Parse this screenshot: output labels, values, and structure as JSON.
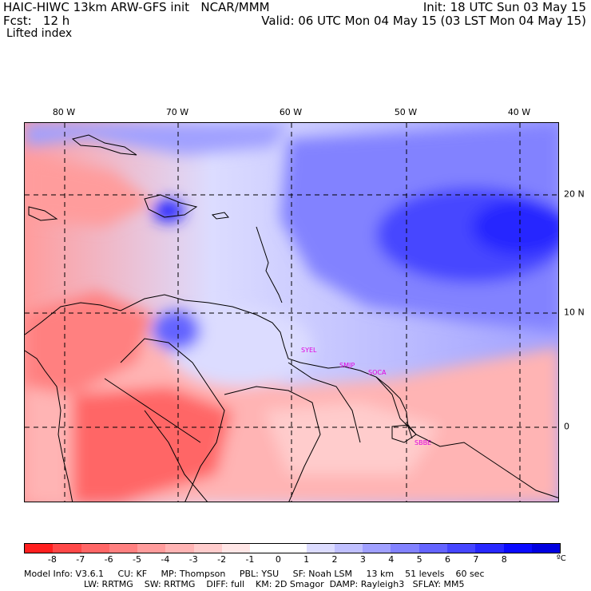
{
  "header": {
    "line1_left": "HAIC-HIWC 13km ARW-GFS init   NCAR/MMM",
    "line2_left": "Fcst:   12 h",
    "field": "Lifted index",
    "line1_right": "Init: 18 UTC Sun 03 May 15",
    "line2_right": "Valid: 06 UTC Mon 04 May 15 (03 LST Mon 04 May 15)"
  },
  "map": {
    "lon_labels": [
      "80 W",
      "70 W",
      "60 W",
      "50 W",
      "40 W"
    ],
    "lat_labels": [
      "20 N",
      "10 N",
      "0"
    ],
    "stations": [
      "SYEL",
      "SMJP",
      "SOCA",
      "SBBE"
    ]
  },
  "colorbar": {
    "colors": [
      "#ff1f1f",
      "#ff4848",
      "#ff6666",
      "#ff8080",
      "#ff9c9c",
      "#ffb4b4",
      "#ffcccc",
      "#ffe6e6",
      "#ffffff",
      "#ffffff",
      "#dcdcff",
      "#c0c0ff",
      "#a0a0ff",
      "#8282ff",
      "#6464ff",
      "#4646ff",
      "#2828ff",
      "#0a0aff",
      "#0000e0"
    ],
    "ticks": [
      "-8",
      "-7",
      "-6",
      "-5",
      "-4",
      "-3",
      "-2",
      "-1",
      "0",
      "1",
      "2",
      "3",
      "4",
      "5",
      "6",
      "7",
      "8"
    ],
    "unit": "ºC"
  },
  "footer": {
    "line1": "Model Info: V3.6.1     CU: KF     MP: Thompson     PBL: YSU     SF: Noah LSM     13 km    51 levels    60 sec",
    "line2": "LW: RRTMG    SW: RRTMG    DIFF: full    KM: 2D Smagor  DAMP: Rayleigh3   SFLAY: MM5"
  }
}
